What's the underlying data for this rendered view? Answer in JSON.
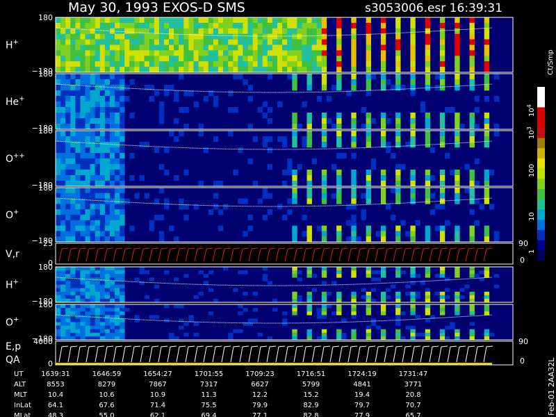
{
  "header": {
    "title": "May 30, 1993   EXOS-D SMS",
    "file": "s3053006.esr  16:39:31"
  },
  "panels": [
    {
      "ion": "H",
      "charge": "+",
      "top": "180",
      "bottom": "−180"
    },
    {
      "ion": "He",
      "charge": "+",
      "top": "180",
      "bottom": "−180"
    },
    {
      "ion": "O",
      "charge": "++",
      "top": "180",
      "bottom": "−180"
    },
    {
      "ion": "O",
      "charge": "+",
      "top": "180",
      "bottom": "−180"
    },
    {
      "ion": "V,r",
      "top": "25",
      "bottom": "0",
      "right_top": "90",
      "right_bottom": "0"
    },
    {
      "ion": "H",
      "charge": "+",
      "top": "180",
      "bottom": "−180"
    },
    {
      "ion": "O",
      "charge": "+",
      "top": "180",
      "bottom": "−180"
    },
    {
      "ion": "E,p",
      "ion2": "QA",
      "top": "4000",
      "bottom": "0",
      "right_top": "90",
      "right_bottom": "0"
    }
  ],
  "colorbar": {
    "unit": "Ct/Smp",
    "labels": [
      {
        "base": "10",
        "exp": "4"
      },
      {
        "base": "10",
        "exp": "3"
      },
      {
        "base": "100"
      },
      {
        "base": "10"
      },
      {
        "base": "1"
      }
    ]
  },
  "table": {
    "rows": [
      [
        "UT",
        "1639:31",
        "1646:59",
        "1654:27",
        "1701:55",
        "1709:23",
        "1716:51",
        "1724:19",
        "1731:47"
      ],
      [
        "ALT",
        "8553",
        "8279",
        "7867",
        "7317",
        "6627",
        "5799",
        "4841",
        "3771"
      ],
      [
        "MLT",
        "10.4",
        "10.6",
        "10.9",
        "11.3",
        "12.2",
        "15.2",
        "19.4",
        "20.8"
      ],
      [
        "InLat",
        "64.1",
        "67.6",
        "71.4",
        "75.5",
        "79.9",
        "82.9",
        "79.7",
        "70.7"
      ],
      [
        "MLat",
        "48.3",
        "55.0",
        "62.1",
        "69.4",
        "77.1",
        "82.8",
        "77.9",
        "65.7"
      ]
    ]
  },
  "footer": "Feb-01 2AA32L"
}
